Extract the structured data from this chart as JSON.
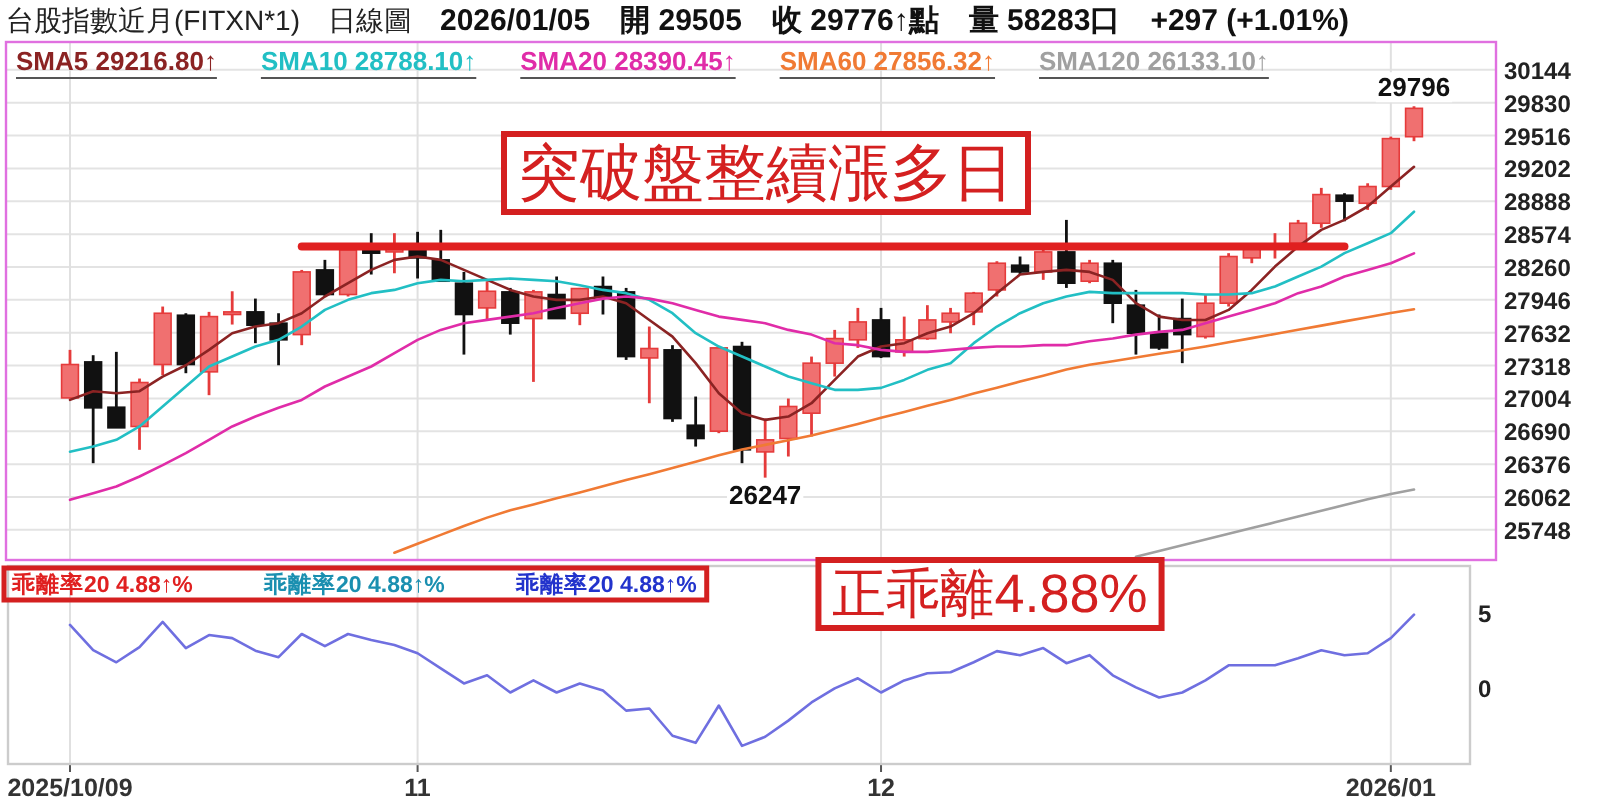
{
  "chart_data": [
    {
      "type": "candlestick",
      "title": "台股指數近月(FITXN*1)　日線圖",
      "subtitle": "2026/01/05　開 29505　收 29776↑點　量 58283口　+297 (+1.01%)",
      "categories": [
        "2025/10/09",
        null,
        null,
        null,
        null,
        null,
        null,
        null,
        null,
        null,
        null,
        null,
        null,
        null,
        null,
        "11",
        null,
        null,
        null,
        null,
        null,
        null,
        null,
        null,
        null,
        null,
        null,
        null,
        null,
        null,
        null,
        null,
        null,
        null,
        null,
        "12",
        null,
        null,
        null,
        null,
        null,
        null,
        null,
        null,
        null,
        null,
        null,
        null,
        null,
        null,
        null,
        null,
        null,
        null,
        null,
        null,
        null,
        "2026/01",
        null
      ],
      "ohlc": [
        [
          27009,
          27468,
          27003,
          27328
        ],
        [
          27353,
          27417,
          26385,
          26914
        ],
        [
          26920,
          27449,
          26723,
          26723
        ],
        [
          26736,
          27194,
          26513,
          27156
        ],
        [
          27328,
          27882,
          27226,
          27818
        ],
        [
          27799,
          27818,
          27245,
          27328
        ],
        [
          27258,
          27831,
          27035,
          27786
        ],
        [
          27806,
          28028,
          27710,
          27831
        ],
        [
          27831,
          27958,
          27532,
          27704
        ],
        [
          27723,
          27818,
          27321,
          27564
        ],
        [
          27614,
          28232,
          27513,
          28213
        ],
        [
          28232,
          28328,
          27978,
          27997
        ],
        [
          27997,
          28423,
          27978,
          28423
        ],
        [
          28417,
          28583,
          28188,
          28392
        ],
        [
          28404,
          28583,
          28200,
          28443
        ],
        [
          28443,
          28596,
          28150,
          28347
        ],
        [
          28328,
          28615,
          28124,
          28124
        ],
        [
          28105,
          28213,
          27423,
          27806
        ],
        [
          27869,
          28124,
          27755,
          28028
        ],
        [
          28022,
          28060,
          27614,
          27723
        ],
        [
          27767,
          28041,
          27162,
          28022
        ],
        [
          27997,
          28169,
          27767,
          27767
        ],
        [
          27818,
          28060,
          27704,
          28054
        ],
        [
          28073,
          28169,
          27806,
          27978
        ],
        [
          28022,
          28060,
          27372,
          27404
        ],
        [
          27391,
          27691,
          26958,
          27481
        ],
        [
          27468,
          27513,
          26780,
          26812
        ],
        [
          26748,
          27022,
          26544,
          26621
        ],
        [
          26691,
          27500,
          26672,
          27487
        ],
        [
          27500,
          27545,
          26385,
          26513
        ],
        [
          26493,
          26812,
          26247,
          26608
        ],
        [
          26621,
          27003,
          26449,
          26927
        ],
        [
          26863,
          27404,
          26640,
          27341
        ],
        [
          27341,
          27659,
          27213,
          27576
        ],
        [
          27564,
          27869,
          27487,
          27735
        ],
        [
          27754,
          27869,
          27390,
          27404
        ],
        [
          27449,
          27786,
          27404,
          27564
        ],
        [
          27576,
          27895,
          27564,
          27754
        ],
        [
          27735,
          27869,
          27627,
          27818
        ],
        [
          27831,
          28022,
          27704,
          28010
        ],
        [
          28041,
          28315,
          27978,
          28296
        ],
        [
          28277,
          28360,
          28188,
          28213
        ],
        [
          28213,
          28443,
          28137,
          28404
        ],
        [
          28404,
          28710,
          28060,
          28105
        ],
        [
          28124,
          28328,
          28105,
          28296
        ],
        [
          28296,
          28328,
          27723,
          27914
        ],
        [
          27895,
          28041,
          27423,
          27627
        ],
        [
          27627,
          27806,
          27468,
          27487
        ],
        [
          27767,
          27958,
          27341,
          27614
        ],
        [
          27595,
          27997,
          27576,
          27914
        ],
        [
          27914,
          28392,
          27882,
          28360
        ],
        [
          28347,
          28468,
          28296,
          28443
        ],
        [
          28430,
          28583,
          28341,
          28455
        ],
        [
          28487,
          28710,
          28468,
          28678
        ],
        [
          28678,
          29016,
          28634,
          28952
        ],
        [
          28946,
          28965,
          28697,
          28889
        ],
        [
          28869,
          29060,
          28806,
          29029
        ],
        [
          29029,
          29506,
          28997,
          29487
        ],
        [
          29505,
          29796,
          29462,
          29776
        ]
      ],
      "series": [
        {
          "type": "line",
          "name": "SMA5 29216.80↑",
          "color": "#8b2323",
          "values": [
            26990,
            27073,
            27054,
            27073,
            27213,
            27321,
            27468,
            27627,
            27691,
            27723,
            27818,
            27978,
            28105,
            28232,
            28328,
            28360,
            28328,
            28232,
            28137,
            28041,
            27978,
            27946,
            27946,
            27978,
            27914,
            27754,
            27595,
            27341,
            27054,
            26863,
            26799,
            26831,
            26958,
            27181,
            27404,
            27500,
            27532,
            27627,
            27691,
            27818,
            28010,
            28188,
            28213,
            28232,
            28213,
            28137,
            27914,
            27786,
            27754,
            27754,
            27850,
            28041,
            28264,
            28455,
            28615,
            28710,
            28838,
            29029,
            29216.8
          ]
        },
        {
          "type": "line",
          "name": "SMA10 28788.10↑",
          "color": "#22bfc4",
          "values": [
            26494,
            26544,
            26608,
            26736,
            26927,
            27118,
            27309,
            27404,
            27500,
            27564,
            27691,
            27850,
            27946,
            28010,
            28041,
            28105,
            28137,
            28124,
            28137,
            28150,
            28137,
            28124,
            28086,
            28041,
            28010,
            27946,
            27818,
            27627,
            27500,
            27404,
            27309,
            27213,
            27149,
            27086,
            27086,
            27105,
            27181,
            27277,
            27341,
            27532,
            27691,
            27818,
            27914,
            27978,
            28022,
            28010,
            28010,
            28010,
            28010,
            27997,
            27997,
            28010,
            28073,
            28169,
            28264,
            28392,
            28487,
            28583,
            28788.1
          ]
        },
        {
          "type": "line",
          "name": "SMA20 28390.45↑",
          "color": "#e02ca8",
          "values": [
            26035,
            26099,
            26162,
            26258,
            26366,
            26481,
            26608,
            26736,
            26831,
            26914,
            26990,
            27118,
            27213,
            27309,
            27436,
            27564,
            27659,
            27723,
            27755,
            27786,
            27818,
            27869,
            27914,
            27958,
            27978,
            27958,
            27914,
            27850,
            27786,
            27755,
            27723,
            27659,
            27614,
            27532,
            27513,
            27468,
            27449,
            27449,
            27468,
            27487,
            27500,
            27500,
            27513,
            27513,
            27551,
            27576,
            27614,
            27640,
            27659,
            27723,
            27786,
            27850,
            27914,
            28010,
            28073,
            28169,
            28232,
            28296,
            28390.45
          ]
        },
        {
          "type": "line",
          "name": "SMA60 27856.32↑",
          "color": "#f07a34",
          "values": [
            null,
            null,
            null,
            null,
            null,
            null,
            null,
            null,
            null,
            null,
            null,
            null,
            null,
            null,
            25530,
            25615,
            25700,
            25785,
            25865,
            25935,
            25990,
            26050,
            26105,
            26165,
            26225,
            26280,
            26340,
            26400,
            26460,
            26515,
            26560,
            26605,
            26650,
            26705,
            26760,
            26820,
            26875,
            26935,
            26990,
            27050,
            27105,
            27165,
            27220,
            27280,
            27325,
            27360,
            27395,
            27430,
            27465,
            27500,
            27540,
            27580,
            27620,
            27660,
            27700,
            27740,
            27780,
            27820,
            27856.32
          ]
        },
        {
          "type": "line",
          "name": "SMA120 26133.10↑",
          "color": "#a0a0a0",
          "values": [
            null,
            null,
            null,
            null,
            null,
            null,
            null,
            null,
            null,
            null,
            null,
            null,
            null,
            null,
            null,
            null,
            null,
            null,
            null,
            null,
            null,
            null,
            null,
            null,
            null,
            null,
            null,
            null,
            null,
            null,
            null,
            null,
            null,
            null,
            null,
            null,
            null,
            null,
            null,
            null,
            null,
            null,
            null,
            null,
            null,
            null,
            25490,
            25545,
            25600,
            25655,
            25710,
            25765,
            25820,
            25875,
            25930,
            25985,
            26040,
            26090,
            26133.1
          ]
        },
        {
          "type": "line",
          "color": "#e02020",
          "values": [
            null,
            null,
            null,
            null,
            null,
            null,
            null,
            null,
            null,
            null,
            28455,
            28455,
            28455,
            28455,
            28455,
            28455,
            28455,
            28455,
            28455,
            28455,
            28455,
            28455,
            28455,
            28455,
            28455,
            28455,
            28455,
            28455,
            28455,
            28455,
            28455,
            28455,
            28455,
            28455,
            28455,
            28455,
            28455,
            28455,
            28455,
            28455,
            28455,
            28455,
            28455,
            28455,
            28455,
            28455,
            28455,
            28455,
            28455,
            28455,
            28455,
            28455,
            28455,
            28455,
            28455,
            28455,
            null,
            null,
            null
          ]
        }
      ],
      "ylim": [
        25460,
        30410
      ],
      "yticks": [
        25748,
        26062,
        26376,
        26690,
        27004,
        27318,
        27632,
        27946,
        28260,
        28574,
        28888,
        29202,
        29516,
        29830,
        30144
      ],
      "tick_labels": "y",
      "grid": true,
      "legend": "top",
      "annotations": [
        "突破盤整續漲多日",
        "29796",
        "26247"
      ]
    },
    {
      "type": "line",
      "categories": [
        "2025/10/09",
        null,
        null,
        null,
        null,
        null,
        null,
        null,
        null,
        null,
        null,
        null,
        null,
        null,
        null,
        "11",
        null,
        null,
        null,
        null,
        null,
        null,
        null,
        null,
        null,
        null,
        null,
        null,
        null,
        null,
        null,
        null,
        null,
        null,
        null,
        "12",
        null,
        null,
        null,
        null,
        null,
        null,
        null,
        null,
        null,
        null,
        null,
        null,
        null,
        null,
        null,
        null,
        null,
        null,
        null,
        null,
        null,
        "2026/01",
        null
      ],
      "series": [
        {
          "color": "#6f6fe0",
          "values": [
            4.2,
            2.53,
            1.73,
            2.73,
            4.4,
            2.67,
            3.53,
            3.33,
            2.5,
            2.07,
            3.6,
            2.8,
            3.6,
            3.2,
            2.87,
            2.33,
            1.33,
            0.33,
            0.87,
            -0.27,
            0.53,
            -0.27,
            0.33,
            -0.13,
            -1.47,
            -1.33,
            -3.13,
            -3.6,
            -1.13,
            -3.8,
            -3.2,
            -2.13,
            -0.93,
            0,
            0.67,
            -0.27,
            0.53,
            1.0,
            1.07,
            1.73,
            2.47,
            2.2,
            2.67,
            1.67,
            2.2,
            0.87,
            0.07,
            -0.6,
            -0.27,
            0.53,
            1.53,
            1.53,
            1.53,
            2.0,
            2.53,
            2.2,
            2.33,
            3.33,
            4.88
          ]
        }
      ],
      "ylim": [
        -5,
        8.1
      ],
      "yticks": [
        0,
        5
      ],
      "grid": "x",
      "annotations": [
        "乖離率20 4.88↑%",
        "乖離率20 4.88↑%",
        "乖離率20 4.88↑%",
        "正乖離4.88%"
      ]
    }
  ]
}
